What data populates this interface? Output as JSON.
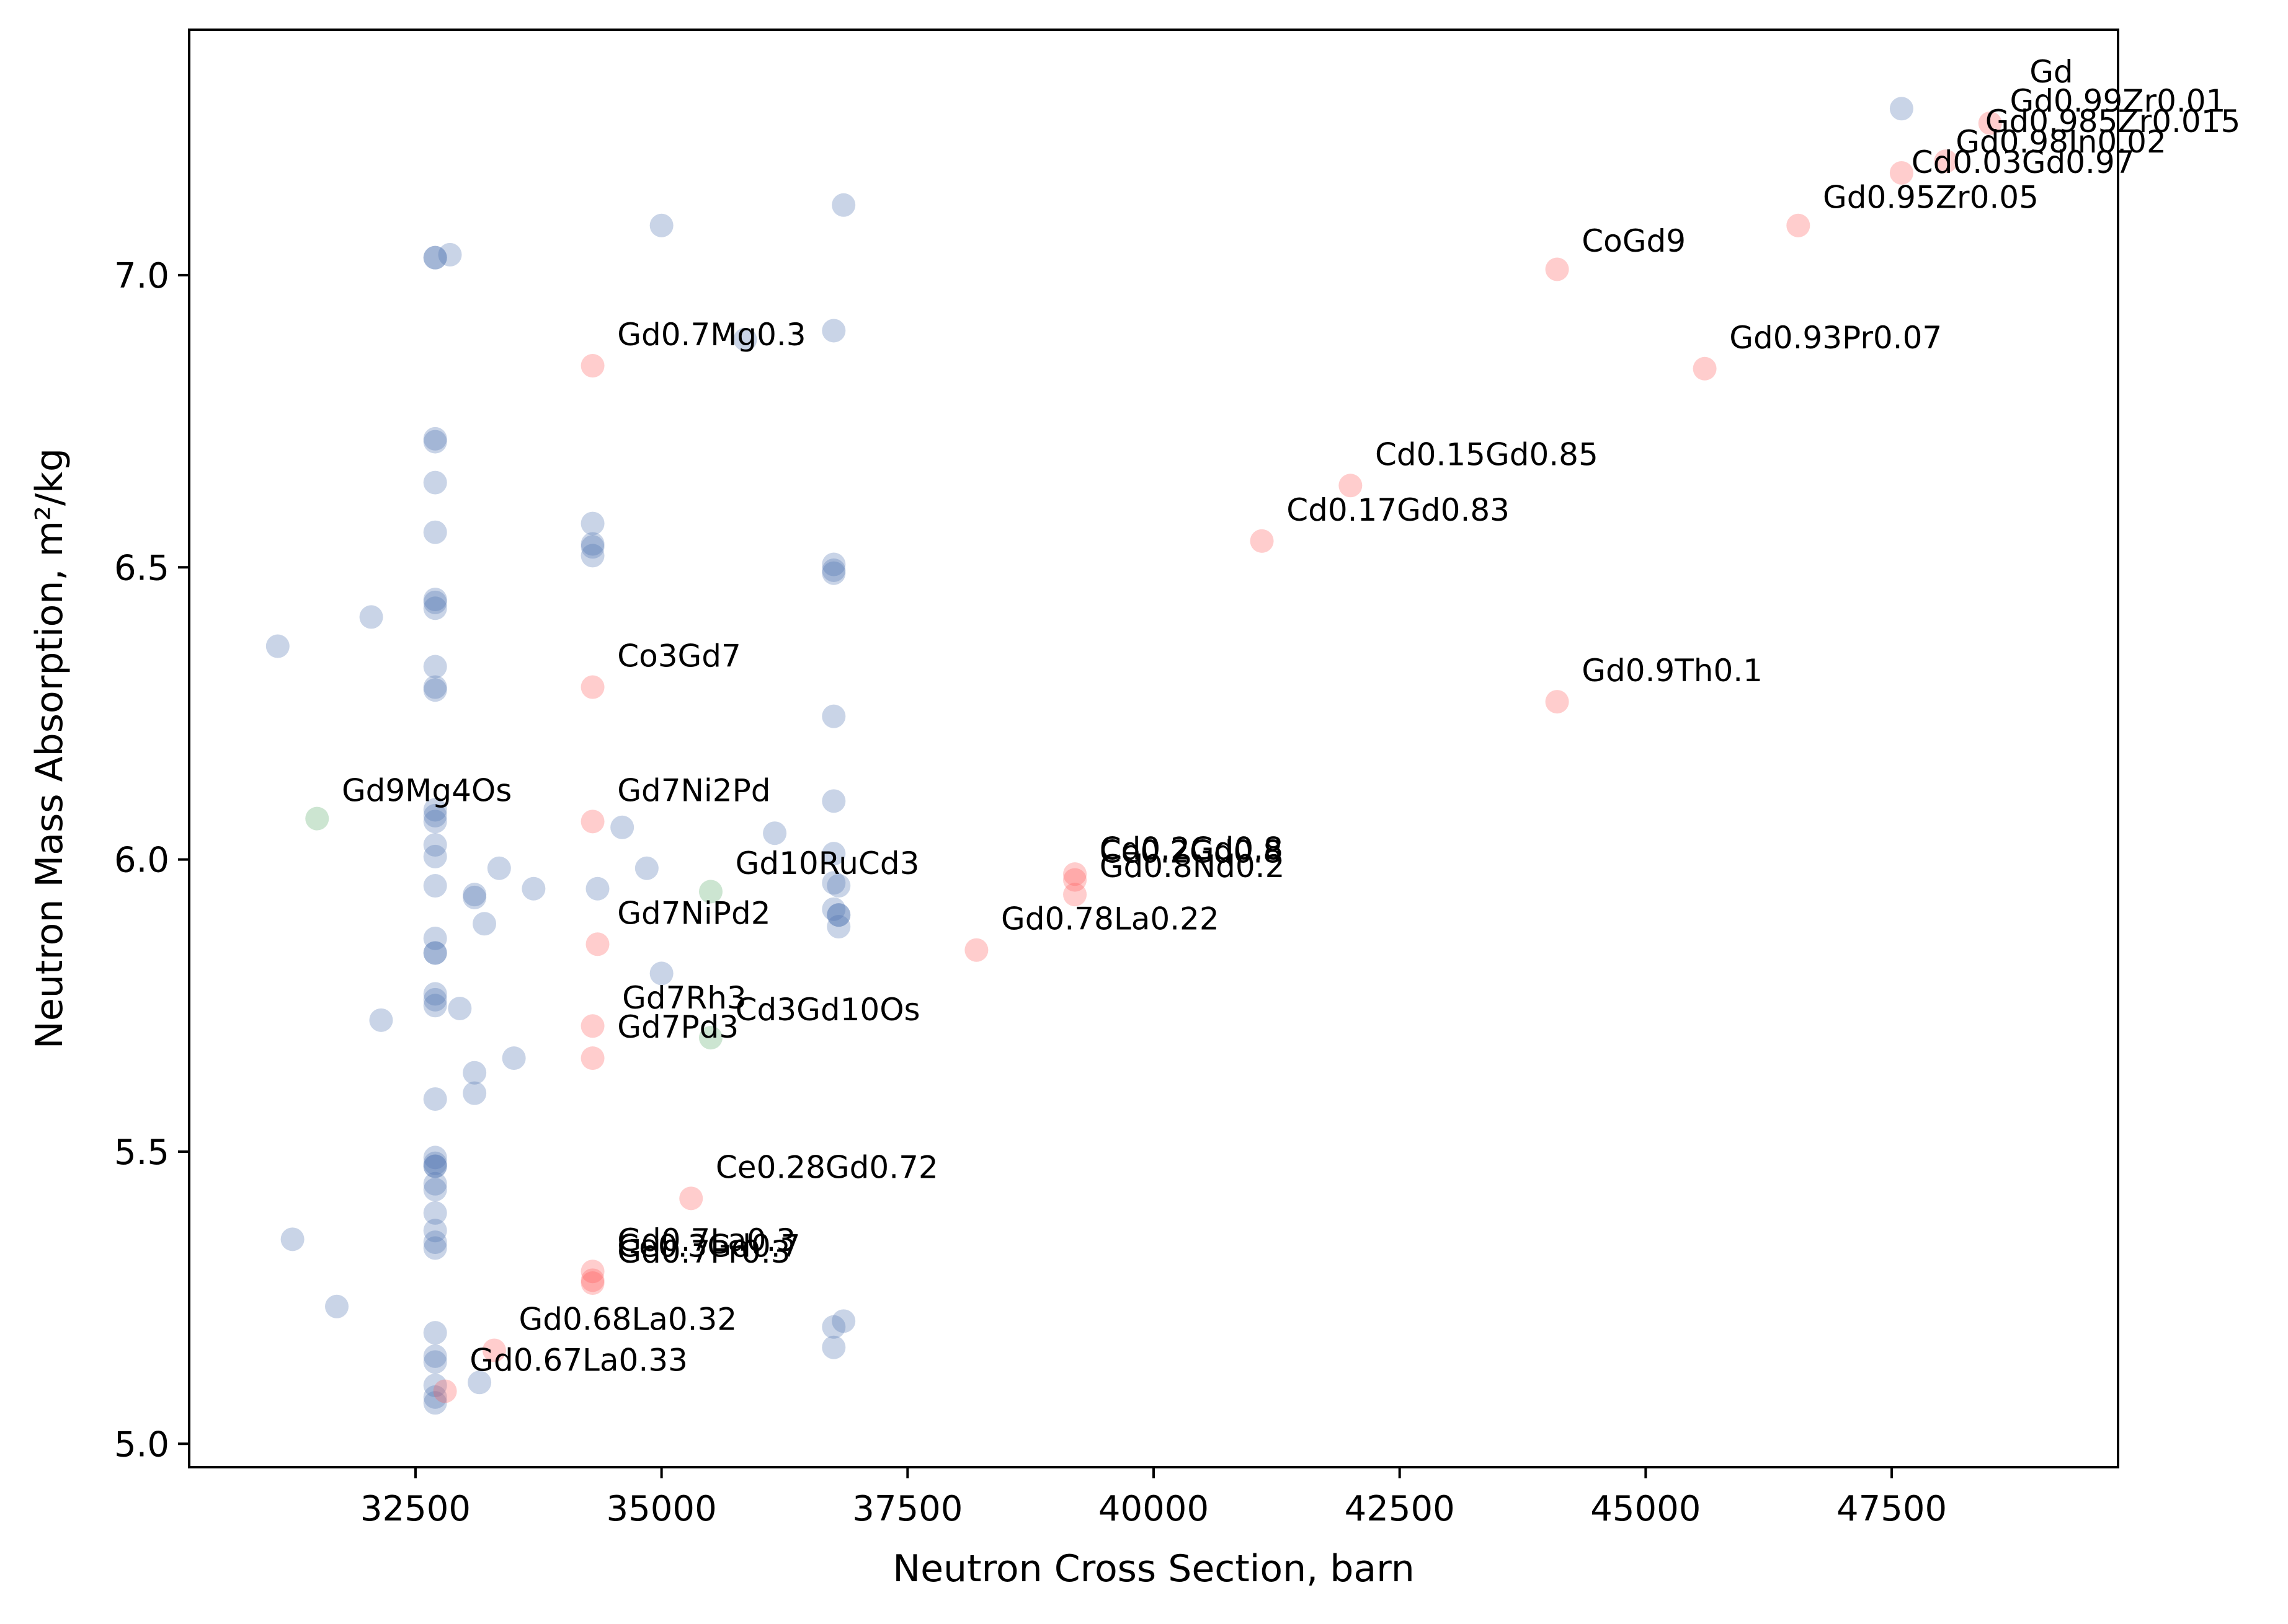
{
  "chart_data": {
    "type": "scatter",
    "title": "",
    "xlabel": "Neutron Cross Section, barn",
    "ylabel": "Neutron Mass Absorption, m²/kg",
    "xlim": [
      30200,
      49800
    ],
    "ylim": [
      4.96,
      7.42
    ],
    "xticks": [
      32500,
      35000,
      37500,
      40000,
      42500,
      45000,
      47500
    ],
    "xtick_labels": [
      "32500",
      "35000",
      "37500",
      "40000",
      "42500",
      "45000",
      "47500"
    ],
    "yticks": [
      5.0,
      5.5,
      6.0,
      6.5,
      7.0
    ],
    "ytick_labels": [
      "5.0",
      "5.5",
      "6.0",
      "6.5",
      "7.0"
    ],
    "grid": false,
    "legend": "none",
    "colors": {
      "blue": "#4c72b0",
      "red": "#ff5a5a",
      "green": "#55a868"
    },
    "series": [
      {
        "color_key": "blue",
        "x": [
          31100,
          31250,
          31700,
          32050,
          32150,
          32700,
          32700,
          32700,
          32700,
          32700,
          32700,
          32700,
          32700,
          32700,
          32700,
          32700,
          32700,
          32700,
          32700,
          32700,
          32700,
          32700,
          32700,
          32700,
          32700,
          32700,
          32700,
          32700,
          32700,
          32700,
          32700,
          32700,
          32700,
          32700,
          32700,
          32700,
          32700,
          32700,
          32700,
          32700,
          32700,
          32700,
          32700,
          32700,
          32700,
          32700,
          32850,
          32950,
          33100,
          33100,
          33100,
          33100,
          33150,
          33200,
          33350,
          33500,
          33700,
          34300,
          34300,
          34300,
          34300,
          34350,
          34600,
          34850,
          35000,
          35000,
          35850,
          36150,
          36750,
          36750,
          36750,
          36750,
          36750,
          36750,
          36750,
          36750,
          36750,
          36750,
          36750,
          36800,
          36800,
          36800,
          36800,
          36850,
          36850,
          47600
        ],
        "y": [
          6.365,
          5.35,
          5.235,
          6.415,
          5.725,
          7.03,
          7.03,
          6.72,
          6.715,
          6.645,
          6.56,
          6.445,
          6.44,
          6.43,
          6.33,
          6.295,
          6.29,
          6.085,
          6.075,
          6.065,
          6.025,
          6.005,
          5.955,
          5.865,
          5.84,
          5.84,
          5.77,
          5.76,
          5.75,
          5.59,
          5.49,
          5.48,
          5.475,
          5.475,
          5.445,
          5.435,
          5.395,
          5.365,
          5.345,
          5.335,
          5.19,
          5.15,
          5.14,
          5.1,
          5.08,
          5.07,
          7.035,
          5.745,
          5.94,
          5.935,
          5.635,
          5.6,
          5.105,
          5.89,
          5.985,
          5.66,
          5.95,
          6.575,
          6.54,
          6.535,
          6.52,
          5.95,
          6.055,
          5.985,
          7.085,
          5.805,
          6.89,
          6.045,
          6.905,
          6.505,
          6.495,
          6.49,
          6.245,
          6.1,
          6.01,
          5.96,
          5.2,
          5.165,
          5.915,
          5.905,
          5.955,
          5.905,
          5.885,
          7.12,
          5.21,
          7.285
        ]
      },
      {
        "color_key": "red",
        "x": [
          34300,
          34300,
          34300,
          34350,
          34300,
          34300,
          34300,
          34300,
          34300,
          33300,
          32800,
          35300,
          38200,
          39200,
          39200,
          39200,
          41100,
          42000,
          44100,
          44100,
          45600,
          46550,
          47600,
          48050,
          48500
        ],
        "y": [
          6.845,
          6.295,
          6.065,
          5.855,
          5.715,
          5.66,
          5.295,
          5.28,
          5.275,
          5.16,
          5.09,
          5.42,
          5.845,
          5.975,
          5.965,
          5.94,
          6.545,
          6.64,
          7.01,
          6.27,
          6.84,
          7.085,
          7.175,
          7.195,
          7.26
        ]
      },
      {
        "color_key": "green",
        "x": [
          31500,
          35500,
          35500
        ],
        "y": [
          6.07,
          5.945,
          5.695
        ]
      }
    ],
    "annotations": [
      {
        "text": "Gd",
        "x": 48900,
        "y": 7.33
      },
      {
        "text": "Gd0.99Zr0.01",
        "x": 48700,
        "y": 7.28
      },
      {
        "text": "Gd0.985Zr0.015",
        "x": 48450,
        "y": 7.245
      },
      {
        "text": "Gd0.98In0.02",
        "x": 48150,
        "y": 7.21
      },
      {
        "text": "Cd0.03Gd0.97",
        "x": 47700,
        "y": 7.175
      },
      {
        "text": "Gd0.95Zr0.05",
        "x": 46800,
        "y": 7.115
      },
      {
        "text": "CoGd9",
        "x": 44350,
        "y": 7.04
      },
      {
        "text": "Gd0.93Pr0.07",
        "x": 45850,
        "y": 6.875
      },
      {
        "text": "Cd0.15Gd0.85",
        "x": 42250,
        "y": 6.675
      },
      {
        "text": "Cd0.17Gd0.83",
        "x": 41350,
        "y": 6.58
      },
      {
        "text": "Gd0.9Th0.1",
        "x": 44350,
        "y": 6.305
      },
      {
        "text": "Gd0.7Mg0.3",
        "x": 34550,
        "y": 6.88
      },
      {
        "text": "Co3Gd7",
        "x": 34550,
        "y": 6.33
      },
      {
        "text": "Gd9Mg4Os",
        "x": 31750,
        "y": 6.1
      },
      {
        "text": "Gd7Ni2Pd",
        "x": 34550,
        "y": 6.1
      },
      {
        "text": "Gd10RuCd3",
        "x": 35750,
        "y": 5.975
      },
      {
        "text": "Cd0.2Gd0.8",
        "x": 39450,
        "y": 6.0
      },
      {
        "text": "Ce0.2Gd0.8",
        "x": 39450,
        "y": 5.995
      },
      {
        "text": "Gd0.8Nd0.2",
        "x": 39450,
        "y": 5.97
      },
      {
        "text": "Gd7NiPd2",
        "x": 34550,
        "y": 5.89
      },
      {
        "text": "Gd0.78La0.22",
        "x": 38450,
        "y": 5.88
      },
      {
        "text": "Gd7Rh3",
        "x": 34600,
        "y": 5.745
      },
      {
        "text": "Cd3Gd10Os",
        "x": 35750,
        "y": 5.725
      },
      {
        "text": "Gd7Pd3",
        "x": 34550,
        "y": 5.695
      },
      {
        "text": "Ce0.28Gd0.72",
        "x": 35550,
        "y": 5.455
      },
      {
        "text": "Gd0.7La0.3",
        "x": 34550,
        "y": 5.33
      },
      {
        "text": "Ce0.3Gd0.7",
        "x": 34550,
        "y": 5.32
      },
      {
        "text": "Gd0.7Pr0.3",
        "x": 34550,
        "y": 5.31
      },
      {
        "text": "Gd0.68La0.32",
        "x": 33550,
        "y": 5.195
      },
      {
        "text": "Gd0.67La0.33",
        "x": 33050,
        "y": 5.125
      }
    ]
  }
}
